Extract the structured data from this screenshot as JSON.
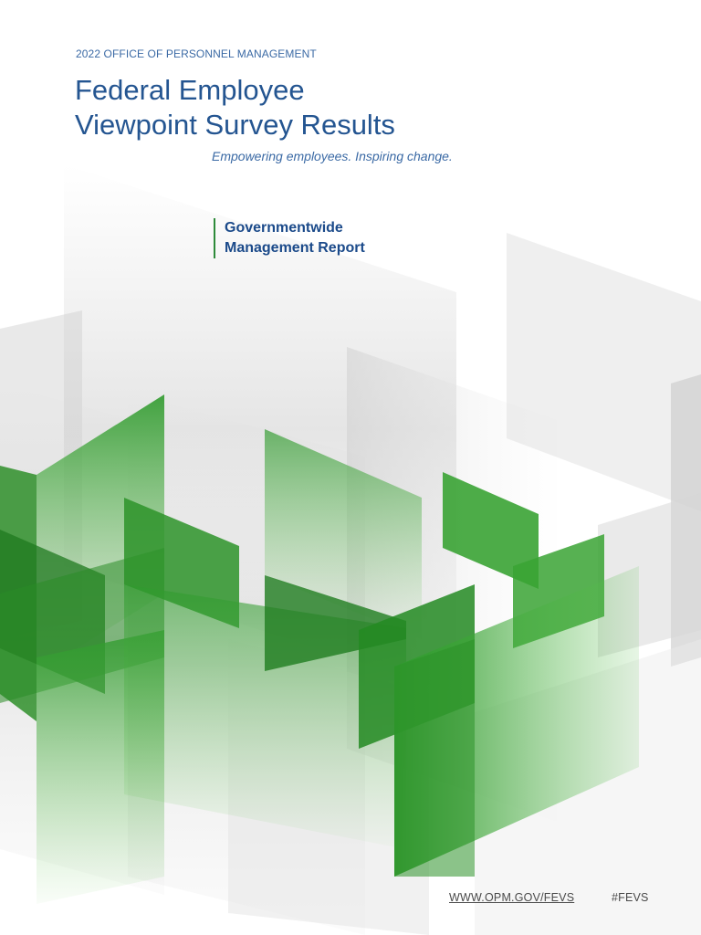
{
  "cover": {
    "eyebrow": "2022 OFFICE OF PERSONNEL MANAGEMENT",
    "title_line1": "Federal Employee",
    "title_line2": "Viewpoint Survey Results",
    "tagline": "Empowering employees. Inspiring change.",
    "report_line1": "Governmentwide",
    "report_line2": "Management Report"
  },
  "footer": {
    "website": "WWW.OPM.GOV/FEVS",
    "hashtag": "#FEVS"
  },
  "colors": {
    "title_blue": "#245591",
    "report_blue": "#1b4a8a",
    "accent_green": "#2e8b3a",
    "shape_green": "#3fa23a"
  }
}
